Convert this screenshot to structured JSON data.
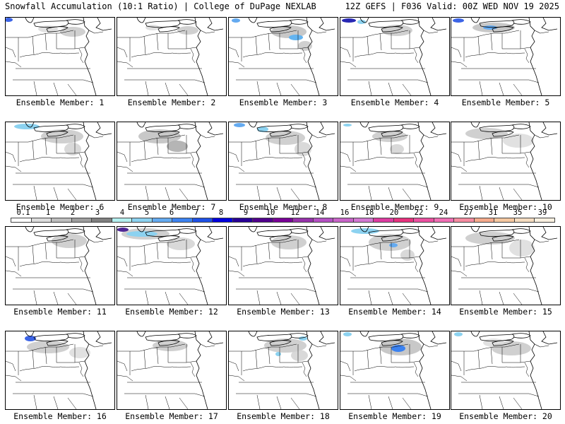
{
  "header": {
    "left_title": "Snowfall Accumulation (10:1 Ratio) | College of DuPage NEXLAB",
    "right_title": "12Z GEFS | F036 Valid: 00Z WED NOV 19 2025"
  },
  "colorbar": {
    "labels": [
      "0.1",
      "1",
      "2",
      "3",
      "4",
      "5",
      "6",
      "7",
      "8",
      "9",
      "10",
      "12",
      "14",
      "16",
      "18",
      "20",
      "22",
      "24",
      "27",
      "31",
      "35",
      "39"
    ],
    "colors": [
      "#ffffff",
      "#dcdcdc",
      "#bebebe",
      "#9e9e9e",
      "#808080",
      "#b4f0f0",
      "#8cd2f0",
      "#64aaf0",
      "#3c82f0",
      "#1e50e6",
      "#0000dc",
      "#280096",
      "#50008c",
      "#780096",
      "#9632aa",
      "#b450c3",
      "#c864c8",
      "#d278d2",
      "#dc3ca0",
      "#e6327d",
      "#eb50a0",
      "#f06eb4",
      "#f58ca0",
      "#f5aa8c",
      "#f5c8a0",
      "#f5dcc0",
      "#faf0e0"
    ]
  },
  "panels": [
    {
      "label": "Ensemble Member: 1",
      "snow": [
        {
          "cx": 95,
          "cy": 20,
          "rx": 18,
          "ry": 7,
          "c": "#c8c8c8"
        },
        {
          "cx": 60,
          "cy": 16,
          "rx": 14,
          "ry": 5,
          "c": "#dcdcdc"
        }
      ],
      "blue": [
        {
          "cx": 4,
          "cy": 3,
          "rx": 6,
          "ry": 3,
          "c": "#3c64e6"
        }
      ]
    },
    {
      "label": "Ensemble Member: 2",
      "snow": [
        {
          "cx": 100,
          "cy": 18,
          "rx": 15,
          "ry": 6,
          "c": "#c8c8c8"
        },
        {
          "cx": 50,
          "cy": 14,
          "rx": 10,
          "ry": 4,
          "c": "#dcdcdc"
        }
      ],
      "blue": []
    },
    {
      "label": "Ensemble Member: 3",
      "snow": [
        {
          "cx": 85,
          "cy": 20,
          "rx": 25,
          "ry": 9,
          "c": "#bebebe"
        },
        {
          "cx": 108,
          "cy": 40,
          "rx": 10,
          "ry": 7,
          "c": "#c8c8c8"
        }
      ],
      "blue": [
        {
          "cx": 95,
          "cy": 28,
          "rx": 10,
          "ry": 4,
          "c": "#64b4f0"
        },
        {
          "cx": 10,
          "cy": 4,
          "rx": 6,
          "ry": 3,
          "c": "#64aaf0"
        }
      ]
    },
    {
      "label": "Ensemble Member: 4",
      "snow": [
        {
          "cx": 80,
          "cy": 18,
          "rx": 22,
          "ry": 8,
          "c": "#c8c8c8"
        }
      ],
      "blue": [
        {
          "cx": 12,
          "cy": 4,
          "rx": 10,
          "ry": 3,
          "c": "#2828b4"
        },
        {
          "cx": 30,
          "cy": 6,
          "rx": 6,
          "ry": 3,
          "c": "#8cd2f0"
        }
      ]
    },
    {
      "label": "Ensemble Member: 5",
      "snow": [
        {
          "cx": 60,
          "cy": 14,
          "rx": 30,
          "ry": 7,
          "c": "#bebebe"
        }
      ],
      "blue": [
        {
          "cx": 10,
          "cy": 4,
          "rx": 8,
          "ry": 3,
          "c": "#3c64e6"
        },
        {
          "cx": 55,
          "cy": 14,
          "rx": 10,
          "ry": 3,
          "c": "#64aaf0"
        }
      ]
    },
    {
      "label": "Ensemble Member: 6",
      "snow": [
        {
          "cx": 80,
          "cy": 20,
          "rx": 30,
          "ry": 10,
          "c": "#c8c8c8"
        },
        {
          "cx": 95,
          "cy": 38,
          "rx": 12,
          "ry": 9,
          "c": "#d2d2d2"
        }
      ],
      "blue": [
        {
          "cx": 30,
          "cy": 6,
          "rx": 18,
          "ry": 4,
          "c": "#8cd2f0"
        }
      ]
    },
    {
      "label": "Ensemble Member: 7",
      "snow": [
        {
          "cx": 60,
          "cy": 20,
          "rx": 30,
          "ry": 10,
          "c": "#bebebe"
        },
        {
          "cx": 85,
          "cy": 34,
          "rx": 15,
          "ry": 8,
          "c": "#a8a8a8"
        }
      ],
      "blue": []
    },
    {
      "label": "Ensemble Member: 8",
      "snow": [
        {
          "cx": 80,
          "cy": 22,
          "rx": 28,
          "ry": 10,
          "c": "#c8c8c8"
        },
        {
          "cx": 105,
          "cy": 38,
          "rx": 12,
          "ry": 10,
          "c": "#d2d2d2"
        }
      ],
      "blue": [
        {
          "cx": 48,
          "cy": 10,
          "rx": 8,
          "ry": 4,
          "c": "#8cd2f0"
        },
        {
          "cx": 15,
          "cy": 4,
          "rx": 8,
          "ry": 3,
          "c": "#64aaf0"
        }
      ]
    },
    {
      "label": "Ensemble Member: 9",
      "snow": [
        {
          "cx": 70,
          "cy": 20,
          "rx": 25,
          "ry": 8,
          "c": "#c8c8c8"
        },
        {
          "cx": 80,
          "cy": 38,
          "rx": 10,
          "ry": 7,
          "c": "#d2d2d2"
        }
      ],
      "blue": [
        {
          "cx": 10,
          "cy": 4,
          "rx": 6,
          "ry": 2,
          "c": "#8cd2f0"
        }
      ]
    },
    {
      "label": "Ensemble Member: 10",
      "snow": [
        {
          "cx": 50,
          "cy": 16,
          "rx": 30,
          "ry": 8,
          "c": "#c8c8c8"
        },
        {
          "cx": 95,
          "cy": 26,
          "rx": 22,
          "ry": 10,
          "c": "#dcdcdc"
        }
      ],
      "blue": []
    },
    {
      "label": "Ensemble Member: 11",
      "snow": [
        {
          "cx": 90,
          "cy": 20,
          "rx": 25,
          "ry": 10,
          "c": "#c8c8c8"
        }
      ],
      "blue": []
    },
    {
      "label": "Ensemble Member: 12",
      "snow": [
        {
          "cx": 40,
          "cy": 10,
          "rx": 34,
          "ry": 8,
          "c": "#c8c8c8"
        },
        {
          "cx": 90,
          "cy": 24,
          "rx": 20,
          "ry": 9,
          "c": "#d2d2d2"
        }
      ],
      "blue": [
        {
          "cx": 35,
          "cy": 10,
          "rx": 22,
          "ry": 4,
          "c": "#8cd2f0"
        },
        {
          "cx": 8,
          "cy": 4,
          "rx": 8,
          "ry": 3,
          "c": "#502896"
        }
      ]
    },
    {
      "label": "Ensemble Member: 13",
      "snow": [
        {
          "cx": 85,
          "cy": 22,
          "rx": 25,
          "ry": 10,
          "c": "#c8c8c8"
        }
      ],
      "blue": []
    },
    {
      "label": "Ensemble Member: 14",
      "snow": [
        {
          "cx": 70,
          "cy": 22,
          "rx": 30,
          "ry": 12,
          "c": "#c8c8c8"
        },
        {
          "cx": 95,
          "cy": 40,
          "rx": 10,
          "ry": 8,
          "c": "#d2d2d2"
        }
      ],
      "blue": [
        {
          "cx": 35,
          "cy": 6,
          "rx": 20,
          "ry": 4,
          "c": "#8cd2f0"
        },
        {
          "cx": 75,
          "cy": 26,
          "rx": 6,
          "ry": 3,
          "c": "#64aaf0"
        }
      ]
    },
    {
      "label": "Ensemble Member: 15",
      "snow": [
        {
          "cx": 55,
          "cy": 16,
          "rx": 35,
          "ry": 9,
          "c": "#c8c8c8"
        },
        {
          "cx": 100,
          "cy": 30,
          "rx": 18,
          "ry": 12,
          "c": "#dcdcdc"
        }
      ],
      "blue": []
    },
    {
      "label": "Ensemble Member: 16",
      "snow": [
        {
          "cx": 60,
          "cy": 22,
          "rx": 30,
          "ry": 9,
          "c": "#c8c8c8"
        },
        {
          "cx": 105,
          "cy": 30,
          "rx": 15,
          "ry": 8,
          "c": "#dcdcdc"
        }
      ],
      "blue": [
        {
          "cx": 35,
          "cy": 10,
          "rx": 8,
          "ry": 4,
          "c": "#3c64e6"
        }
      ]
    },
    {
      "label": "Ensemble Member: 17",
      "snow": [
        {
          "cx": 75,
          "cy": 20,
          "rx": 25,
          "ry": 8,
          "c": "#c8c8c8"
        }
      ],
      "blue": []
    },
    {
      "label": "Ensemble Member: 18",
      "snow": [
        {
          "cx": 80,
          "cy": 20,
          "rx": 30,
          "ry": 10,
          "c": "#c8c8c8"
        },
        {
          "cx": 100,
          "cy": 34,
          "rx": 12,
          "ry": 8,
          "c": "#d2d2d2"
        }
      ],
      "blue": [
        {
          "cx": 105,
          "cy": 10,
          "rx": 6,
          "ry": 3,
          "c": "#8cd2f0"
        },
        {
          "cx": 70,
          "cy": 32,
          "rx": 4,
          "ry": 3,
          "c": "#8cd2f0"
        }
      ]
    },
    {
      "label": "Ensemble Member: 19",
      "snow": [
        {
          "cx": 85,
          "cy": 22,
          "rx": 30,
          "ry": 12,
          "c": "#bebebe"
        }
      ],
      "blue": [
        {
          "cx": 82,
          "cy": 24,
          "rx": 10,
          "ry": 5,
          "c": "#3c82f0"
        },
        {
          "cx": 10,
          "cy": 4,
          "rx": 6,
          "ry": 3,
          "c": "#8cd2f0"
        }
      ]
    },
    {
      "label": "Ensemble Member: 20",
      "snow": [
        {
          "cx": 85,
          "cy": 24,
          "rx": 28,
          "ry": 10,
          "c": "#c8c8c8"
        },
        {
          "cx": 60,
          "cy": 16,
          "rx": 15,
          "ry": 6,
          "c": "#dcdcdc"
        }
      ],
      "blue": [
        {
          "cx": 10,
          "cy": 4,
          "rx": 6,
          "ry": 3,
          "c": "#8cd2f0"
        }
      ]
    }
  ]
}
